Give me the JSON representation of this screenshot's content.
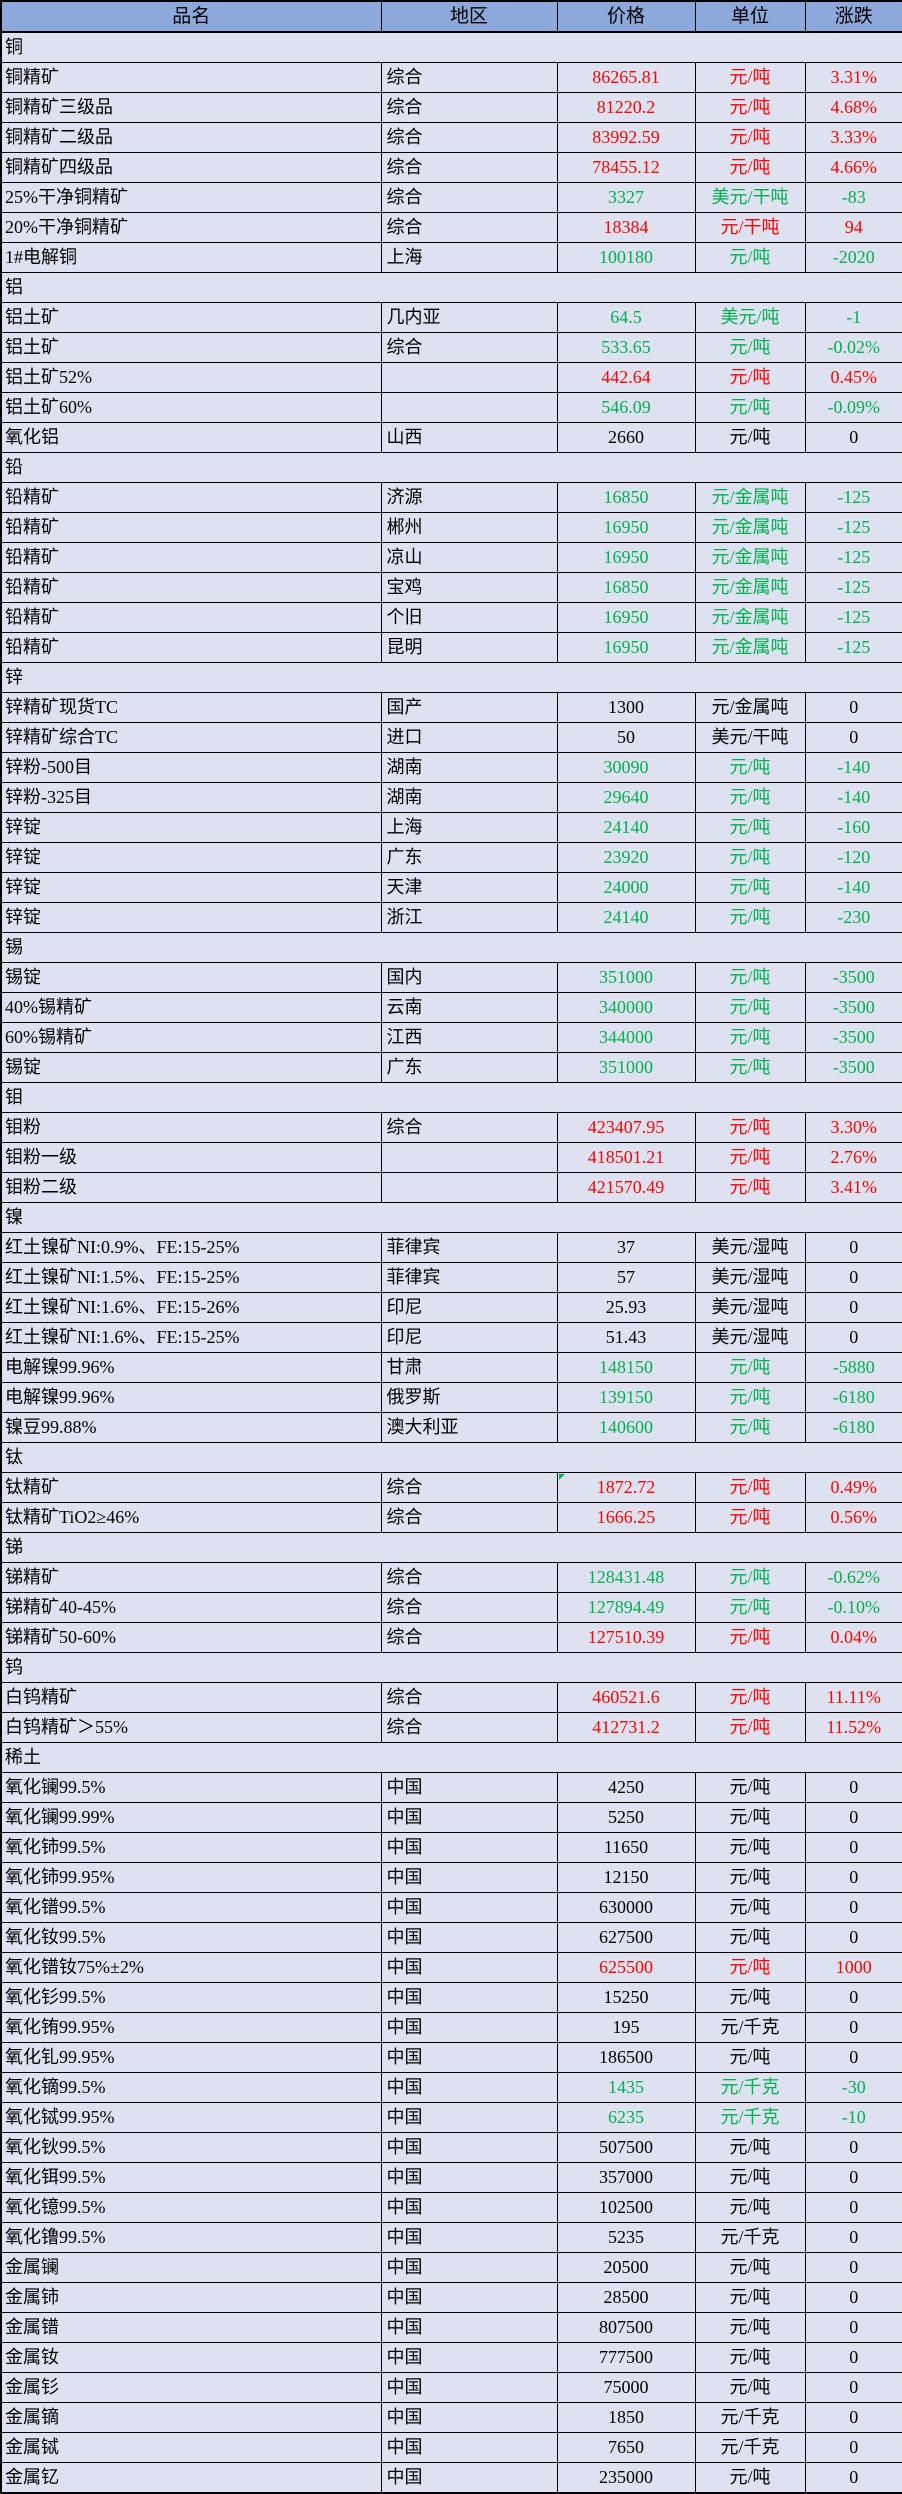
{
  "colors": {
    "up": "#FF0000",
    "down": "#00B050",
    "flat": "#000000",
    "header_bg": "#8DA9DB",
    "row_bg": "#DEE2F0",
    "border": "#000000"
  },
  "table": {
    "columns": [
      "品名",
      "地区",
      "价格",
      "单位",
      "涨跌"
    ],
    "sections": [
      {
        "name": "铜",
        "rows": [
          {
            "name": "铜精矿",
            "region": "综合",
            "price": "86265.81",
            "unit": "元/吨",
            "change": "3.31%",
            "dir": "up"
          },
          {
            "name": "铜精矿三级品",
            "region": "综合",
            "price": "81220.2",
            "unit": "元/吨",
            "change": "4.68%",
            "dir": "up"
          },
          {
            "name": "铜精矿二级品",
            "region": "综合",
            "price": "83992.59",
            "unit": "元/吨",
            "change": "3.33%",
            "dir": "up"
          },
          {
            "name": "铜精矿四级品",
            "region": "综合",
            "price": "78455.12",
            "unit": "元/吨",
            "change": "4.66%",
            "dir": "up"
          },
          {
            "name": "25%干净铜精矿",
            "region": "综合",
            "price": "3327",
            "unit": "美元/干吨",
            "change": "-83",
            "dir": "down"
          },
          {
            "name": "20%干净铜精矿",
            "region": "综合",
            "price": "18384",
            "unit": "元/干吨",
            "change": "94",
            "dir": "up"
          },
          {
            "name": "1#电解铜",
            "region": "上海",
            "price": "100180",
            "unit": "元/吨",
            "change": "-2020",
            "dir": "down"
          }
        ]
      },
      {
        "name": "铝",
        "rows": [
          {
            "name": "铝土矿",
            "region": "几内亚",
            "price": "64.5",
            "unit": "美元/吨",
            "change": "-1",
            "dir": "down"
          },
          {
            "name": "铝土矿",
            "region": "综合",
            "price": "533.65",
            "unit": "元/吨",
            "change": "-0.02%",
            "dir": "down"
          },
          {
            "name": "铝土矿52%",
            "region": "",
            "price": "442.64",
            "unit": "元/吨",
            "change": "0.45%",
            "dir": "up"
          },
          {
            "name": "铝土矿60%",
            "region": "",
            "price": "546.09",
            "unit": "元/吨",
            "change": "-0.09%",
            "dir": "down"
          },
          {
            "name": "氧化铝",
            "region": "山西",
            "price": "2660",
            "unit": "元/吨",
            "change": "0",
            "dir": "flat"
          }
        ]
      },
      {
        "name": "铅",
        "rows": [
          {
            "name": "铅精矿",
            "region": "济源",
            "price": "16850",
            "unit": "元/金属吨",
            "change": "-125",
            "dir": "down"
          },
          {
            "name": "铅精矿",
            "region": "郴州",
            "price": "16950",
            "unit": "元/金属吨",
            "change": "-125",
            "dir": "down"
          },
          {
            "name": "铅精矿",
            "region": "凉山",
            "price": "16950",
            "unit": "元/金属吨",
            "change": "-125",
            "dir": "down"
          },
          {
            "name": "铅精矿",
            "region": "宝鸡",
            "price": "16850",
            "unit": "元/金属吨",
            "change": "-125",
            "dir": "down"
          },
          {
            "name": "铅精矿",
            "region": "个旧",
            "price": "16950",
            "unit": "元/金属吨",
            "change": "-125",
            "dir": "down"
          },
          {
            "name": "铅精矿",
            "region": "昆明",
            "price": "16950",
            "unit": "元/金属吨",
            "change": "-125",
            "dir": "down"
          }
        ]
      },
      {
        "name": "锌",
        "rows": [
          {
            "name": "锌精矿现货TC",
            "region": "国产",
            "price": "1300",
            "unit": "元/金属吨",
            "change": "0",
            "dir": "flat"
          },
          {
            "name": "锌精矿综合TC",
            "region": "进口",
            "price": "50",
            "unit": "美元/干吨",
            "change": "0",
            "dir": "flat"
          },
          {
            "name": "锌粉-500目",
            "region": "湖南",
            "price": "30090",
            "unit": "元/吨",
            "change": "-140",
            "dir": "down"
          },
          {
            "name": "锌粉-325目",
            "region": "湖南",
            "price": "29640",
            "unit": "元/吨",
            "change": "-140",
            "dir": "down"
          },
          {
            "name": "锌锭",
            "region": "上海",
            "price": "24140",
            "unit": "元/吨",
            "change": "-160",
            "dir": "down"
          },
          {
            "name": "锌锭",
            "region": "广东",
            "price": "23920",
            "unit": "元/吨",
            "change": "-120",
            "dir": "down"
          },
          {
            "name": "锌锭",
            "region": "天津",
            "price": "24000",
            "unit": "元/吨",
            "change": "-140",
            "dir": "down"
          },
          {
            "name": "锌锭",
            "region": "浙江",
            "price": "24140",
            "unit": "元/吨",
            "change": "-230",
            "dir": "down"
          }
        ]
      },
      {
        "name": "锡",
        "rows": [
          {
            "name": "锡锭",
            "region": "国内",
            "price": "351000",
            "unit": "元/吨",
            "change": "-3500",
            "dir": "down"
          },
          {
            "name": "40%锡精矿",
            "region": "云南",
            "price": "340000",
            "unit": "元/吨",
            "change": "-3500",
            "dir": "down"
          },
          {
            "name": "60%锡精矿",
            "region": "江西",
            "price": "344000",
            "unit": "元/吨",
            "change": "-3500",
            "dir": "down"
          },
          {
            "name": "锡锭",
            "region": "广东",
            "price": "351000",
            "unit": "元/吨",
            "change": "-3500",
            "dir": "down"
          }
        ]
      },
      {
        "name": "钼",
        "rows": [
          {
            "name": "钼粉",
            "region": "综合",
            "price": "423407.95",
            "unit": "元/吨",
            "change": "3.30%",
            "dir": "up"
          },
          {
            "name": "钼粉一级",
            "region": "",
            "price": "418501.21",
            "unit": "元/吨",
            "change": "2.76%",
            "dir": "up"
          },
          {
            "name": "钼粉二级",
            "region": "",
            "price": "421570.49",
            "unit": "元/吨",
            "change": "3.41%",
            "dir": "up"
          }
        ]
      },
      {
        "name": "镍",
        "rows": [
          {
            "name": "红土镍矿NI:0.9%、FE:15-25%",
            "region": "菲律宾",
            "price": "37",
            "unit": "美元/湿吨",
            "change": "0",
            "dir": "flat"
          },
          {
            "name": "红土镍矿NI:1.5%、FE:15-25%",
            "region": "菲律宾",
            "price": "57",
            "unit": "美元/湿吨",
            "change": "0",
            "dir": "flat"
          },
          {
            "name": "红土镍矿NI:1.6%、FE:15-26%",
            "region": "印尼",
            "price": "25.93",
            "unit": "美元/湿吨",
            "change": "0",
            "dir": "flat"
          },
          {
            "name": "红土镍矿NI:1.6%、FE:15-25%",
            "region": "印尼",
            "price": "51.43",
            "unit": "美元/湿吨",
            "change": "0",
            "dir": "flat"
          },
          {
            "name": "电解镍99.96%",
            "region": "甘肃",
            "price": "148150",
            "unit": "元/吨",
            "change": "-5880",
            "dir": "down"
          },
          {
            "name": "电解镍99.96%",
            "region": "俄罗斯",
            "price": "139150",
            "unit": "元/吨",
            "change": "-6180",
            "dir": "down"
          },
          {
            "name": "镍豆99.88%",
            "region": "澳大利亚",
            "price": "140600",
            "unit": "元/吨",
            "change": "-6180",
            "dir": "down"
          }
        ]
      },
      {
        "name": "钛",
        "rows": [
          {
            "name": "钛精矿",
            "region": "综合",
            "price": "1872.72",
            "unit": "元/吨",
            "change": "0.49%",
            "dir": "up",
            "note": true
          },
          {
            "name": "钛精矿TiO2≥46%",
            "region": "综合",
            "price": "1666.25",
            "unit": "元/吨",
            "change": "0.56%",
            "dir": "up"
          }
        ]
      },
      {
        "name": "锑",
        "rows": [
          {
            "name": "锑精矿",
            "region": "综合",
            "price": "128431.48",
            "unit": "元/吨",
            "change": "-0.62%",
            "dir": "down"
          },
          {
            "name": "锑精矿40-45%",
            "region": "综合",
            "price": "127894.49",
            "unit": "元/吨",
            "change": "-0.10%",
            "dir": "down"
          },
          {
            "name": "锑精矿50-60%",
            "region": "综合",
            "price": "127510.39",
            "unit": "元/吨",
            "change": "0.04%",
            "dir": "up"
          }
        ]
      },
      {
        "name": "钨",
        "rows": [
          {
            "name": "白钨精矿",
            "region": "综合",
            "price": "460521.6",
            "unit": "元/吨",
            "change": "11.11%",
            "dir": "up"
          },
          {
            "name": "白钨精矿＞55%",
            "region": "综合",
            "price": "412731.2",
            "unit": "元/吨",
            "change": "11.52%",
            "dir": "up"
          }
        ]
      },
      {
        "name": "稀土",
        "rows": [
          {
            "name": "氧化镧99.5%",
            "region": "中国",
            "price": "4250",
            "unit": "元/吨",
            "change": "0",
            "dir": "flat"
          },
          {
            "name": "氧化镧99.99%",
            "region": "中国",
            "price": "5250",
            "unit": "元/吨",
            "change": "0",
            "dir": "flat"
          },
          {
            "name": "氧化铈99.5%",
            "region": "中国",
            "price": "11650",
            "unit": "元/吨",
            "change": "0",
            "dir": "flat"
          },
          {
            "name": "氧化铈99.95%",
            "region": "中国",
            "price": "12150",
            "unit": "元/吨",
            "change": "0",
            "dir": "flat"
          },
          {
            "name": "氧化镨99.5%",
            "region": "中国",
            "price": "630000",
            "unit": "元/吨",
            "change": "0",
            "dir": "flat"
          },
          {
            "name": "氧化钕99.5%",
            "region": "中国",
            "price": "627500",
            "unit": "元/吨",
            "change": "0",
            "dir": "flat"
          },
          {
            "name": "氧化镨钕75%±2%",
            "region": "中国",
            "price": "625500",
            "unit": "元/吨",
            "change": "1000",
            "dir": "up"
          },
          {
            "name": "氧化钐99.5%",
            "region": "中国",
            "price": "15250",
            "unit": "元/吨",
            "change": "0",
            "dir": "flat"
          },
          {
            "name": "氧化铕99.95%",
            "region": "中国",
            "price": "195",
            "unit": "元/千克",
            "change": "0",
            "dir": "flat"
          },
          {
            "name": "氧化钆99.95%",
            "region": "中国",
            "price": "186500",
            "unit": "元/吨",
            "change": "0",
            "dir": "flat"
          },
          {
            "name": "氧化镝99.5%",
            "region": "中国",
            "price": "1435",
            "unit": "元/千克",
            "change": "-30",
            "dir": "down"
          },
          {
            "name": "氧化铽99.95%",
            "region": "中国",
            "price": "6235",
            "unit": "元/千克",
            "change": "-10",
            "dir": "down"
          },
          {
            "name": "氧化钬99.5%",
            "region": "中国",
            "price": "507500",
            "unit": "元/吨",
            "change": "0",
            "dir": "flat"
          },
          {
            "name": "氧化铒99.5%",
            "region": "中国",
            "price": "357000",
            "unit": "元/吨",
            "change": "0",
            "dir": "flat"
          },
          {
            "name": "氧化镱99.5%",
            "region": "中国",
            "price": "102500",
            "unit": "元/吨",
            "change": "0",
            "dir": "flat"
          },
          {
            "name": "氧化镥99.5%",
            "region": "中国",
            "price": "5235",
            "unit": "元/千克",
            "change": "0",
            "dir": "flat"
          },
          {
            "name": "金属镧",
            "region": "中国",
            "price": "20500",
            "unit": "元/吨",
            "change": "0",
            "dir": "flat"
          },
          {
            "name": "金属铈",
            "region": "中国",
            "price": "28500",
            "unit": "元/吨",
            "change": "0",
            "dir": "flat"
          },
          {
            "name": "金属镨",
            "region": "中国",
            "price": "807500",
            "unit": "元/吨",
            "change": "0",
            "dir": "flat"
          },
          {
            "name": "金属钕",
            "region": "中国",
            "price": "777500",
            "unit": "元/吨",
            "change": "0",
            "dir": "flat"
          },
          {
            "name": "金属钐",
            "region": "中国",
            "price": "75000",
            "unit": "元/吨",
            "change": "0",
            "dir": "flat"
          },
          {
            "name": "金属镝",
            "region": "中国",
            "price": "1850",
            "unit": "元/千克",
            "change": "0",
            "dir": "flat"
          },
          {
            "name": "金属铽",
            "region": "中国",
            "price": "7650",
            "unit": "元/千克",
            "change": "0",
            "dir": "flat"
          },
          {
            "name": "金属钇",
            "region": "中国",
            "price": "235000",
            "unit": "元/吨",
            "change": "0",
            "dir": "flat"
          }
        ]
      }
    ]
  }
}
